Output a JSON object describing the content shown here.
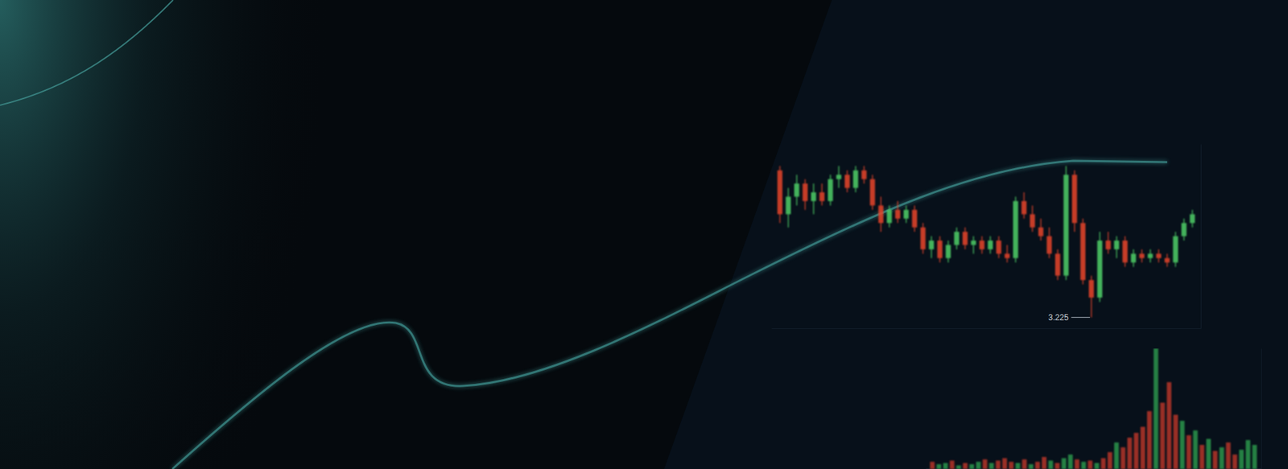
{
  "chart_data": [
    {
      "type": "candlestick",
      "x": [
        1,
        2,
        3,
        4,
        5,
        6,
        7,
        8,
        9,
        10,
        11,
        12,
        13,
        14,
        15,
        16,
        17,
        18,
        19,
        20,
        21,
        22,
        23,
        24,
        25,
        26,
        27,
        28,
        29,
        30,
        31,
        32,
        33,
        34,
        35,
        36,
        37,
        38,
        39,
        40,
        41,
        42,
        43,
        44,
        45,
        46,
        47,
        48,
        49,
        50
      ],
      "open": [
        3.56,
        3.46,
        3.5,
        3.53,
        3.49,
        3.51,
        3.49,
        3.54,
        3.55,
        3.52,
        3.56,
        3.54,
        3.48,
        3.44,
        3.47,
        3.45,
        3.47,
        3.43,
        3.38,
        3.4,
        3.36,
        3.39,
        3.42,
        3.39,
        3.4,
        3.38,
        3.4,
        3.37,
        3.36,
        3.49,
        3.46,
        3.43,
        3.41,
        3.37,
        3.32,
        3.55,
        3.44,
        3.31,
        3.27,
        3.4,
        3.38,
        3.4,
        3.35,
        3.37,
        3.36,
        3.37,
        3.36,
        3.35,
        3.41,
        3.44
      ],
      "high": [
        3.57,
        3.52,
        3.55,
        3.54,
        3.53,
        3.53,
        3.55,
        3.57,
        3.56,
        3.57,
        3.57,
        3.55,
        3.5,
        3.48,
        3.49,
        3.48,
        3.48,
        3.44,
        3.41,
        3.41,
        3.4,
        3.43,
        3.43,
        3.41,
        3.41,
        3.41,
        3.41,
        3.39,
        3.5,
        3.51,
        3.48,
        3.45,
        3.43,
        3.38,
        3.57,
        3.56,
        3.45,
        3.32,
        3.42,
        3.42,
        3.41,
        3.41,
        3.38,
        3.38,
        3.38,
        3.38,
        3.37,
        3.42,
        3.45,
        3.47
      ],
      "low": [
        3.44,
        3.43,
        3.48,
        3.47,
        3.46,
        3.48,
        3.48,
        3.52,
        3.51,
        3.51,
        3.53,
        3.47,
        3.42,
        3.43,
        3.44,
        3.44,
        3.42,
        3.37,
        3.36,
        3.35,
        3.35,
        3.38,
        3.38,
        3.37,
        3.37,
        3.37,
        3.36,
        3.35,
        3.35,
        3.45,
        3.42,
        3.4,
        3.36,
        3.31,
        3.31,
        3.42,
        3.3,
        3.225,
        3.26,
        3.37,
        3.36,
        3.34,
        3.34,
        3.35,
        3.35,
        3.35,
        3.34,
        3.34,
        3.4,
        3.43
      ],
      "close": [
        3.46,
        3.5,
        3.53,
        3.49,
        3.51,
        3.49,
        3.54,
        3.55,
        3.52,
        3.56,
        3.54,
        3.48,
        3.44,
        3.47,
        3.45,
        3.47,
        3.43,
        3.38,
        3.4,
        3.36,
        3.39,
        3.42,
        3.39,
        3.4,
        3.38,
        3.4,
        3.37,
        3.36,
        3.49,
        3.46,
        3.43,
        3.41,
        3.37,
        3.32,
        3.55,
        3.44,
        3.31,
        3.27,
        3.4,
        3.38,
        3.4,
        3.35,
        3.37,
        3.36,
        3.37,
        3.36,
        3.35,
        3.41,
        3.44,
        3.46
      ],
      "xlim": [
        0,
        51
      ],
      "ylim": [
        3.2,
        3.62
      ],
      "tick_labels": false,
      "annotations": [
        {
          "text": "3.225",
          "x": 38,
          "y": 3.225
        }
      ]
    },
    {
      "type": "bar",
      "x": [
        1,
        2,
        3,
        4,
        5,
        6,
        7,
        8,
        9,
        10,
        11,
        12,
        13,
        14,
        15,
        16,
        17,
        18,
        19,
        20,
        21,
        22,
        23,
        24,
        25,
        26,
        27,
        28,
        29,
        30,
        31,
        32,
        33,
        34,
        35,
        36,
        37,
        38,
        39,
        40,
        41,
        42,
        43,
        44,
        45,
        46,
        47,
        48,
        49,
        50
      ],
      "values": [
        6,
        4,
        5,
        7,
        3,
        5,
        4,
        6,
        8,
        5,
        7,
        9,
        6,
        5,
        8,
        4,
        6,
        10,
        7,
        5,
        9,
        12,
        8,
        6,
        7,
        5,
        9,
        14,
        22,
        18,
        26,
        30,
        35,
        48,
        100,
        55,
        72,
        45,
        40,
        28,
        32,
        20,
        25,
        15,
        18,
        22,
        12,
        16,
        24,
        20
      ],
      "colors": [
        "#c0392b",
        "#2e9e4f",
        "#2e9e4f",
        "#c0392b",
        "#2e9e4f",
        "#c0392b",
        "#2e9e4f",
        "#2e9e4f",
        "#c0392b",
        "#2e9e4f",
        "#c0392b",
        "#c0392b",
        "#c0392b",
        "#2e9e4f",
        "#c0392b",
        "#2e9e4f",
        "#c0392b",
        "#c0392b",
        "#2e9e4f",
        "#c0392b",
        "#2e9e4f",
        "#2e9e4f",
        "#c0392b",
        "#2e9e4f",
        "#c0392b",
        "#2e9e4f",
        "#c0392b",
        "#c0392b",
        "#2e9e4f",
        "#c0392b",
        "#c0392b",
        "#c0392b",
        "#c0392b",
        "#c0392b",
        "#2e9e4f",
        "#c0392b",
        "#c0392b",
        "#c0392b",
        "#2e9e4f",
        "#c0392b",
        "#2e9e4f",
        "#c0392b",
        "#2e9e4f",
        "#c0392b",
        "#2e9e4f",
        "#c0392b",
        "#c0392b",
        "#2e9e4f",
        "#2e9e4f",
        "#2e9e4f"
      ],
      "xlim": [
        0,
        51
      ],
      "ylim": [
        0,
        100
      ],
      "tick_labels": false
    }
  ]
}
